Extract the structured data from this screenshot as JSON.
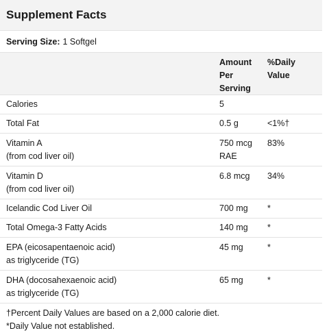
{
  "title": "Supplement Facts",
  "serving": {
    "label": "Serving Size:",
    "value": "1 Softgel"
  },
  "header": {
    "amount": [
      "Amount",
      "Per",
      "Serving"
    ],
    "daily": [
      "%Daily",
      "Value"
    ]
  },
  "rows": [
    {
      "name": [
        "Calories"
      ],
      "amount": [
        "5"
      ],
      "dv": ""
    },
    {
      "name": [
        "Total Fat"
      ],
      "amount": [
        "0.5 g"
      ],
      "dv": "<1%†"
    },
    {
      "name": [
        "Vitamin A",
        "(from cod liver oil)"
      ],
      "amount": [
        "750 mcg",
        "RAE"
      ],
      "dv": "83%"
    },
    {
      "name": [
        "Vitamin D",
        "(from cod liver oil)"
      ],
      "amount": [
        "6.8 mcg"
      ],
      "dv": "34%"
    },
    {
      "name": [
        "Icelandic Cod Liver Oil"
      ],
      "amount": [
        "700 mg"
      ],
      "dv": "*"
    },
    {
      "name": [
        "Total Omega-3 Fatty Acids"
      ],
      "amount": [
        "140 mg"
      ],
      "dv": "*"
    },
    {
      "name": [
        "EPA (eicosapentaenoic acid)",
        "as triglyceride (TG)"
      ],
      "amount": [
        "45 mg"
      ],
      "dv": "*"
    },
    {
      "name": [
        "DHA (docosahexaenoic acid)",
        "as triglyceride (TG)"
      ],
      "amount": [
        "65 mg"
      ],
      "dv": "*"
    }
  ],
  "footnotes": [
    "†Percent Daily Values are based on a 2,000 calorie diet.",
    "*Daily Value not established."
  ]
}
